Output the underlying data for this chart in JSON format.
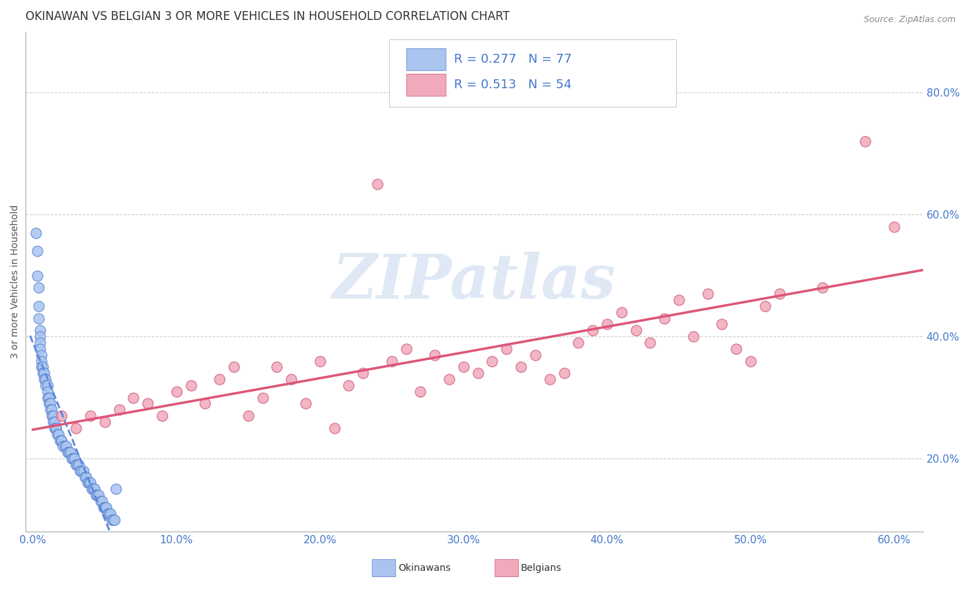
{
  "title": "OKINAWAN VS BELGIAN 3 OR MORE VEHICLES IN HOUSEHOLD CORRELATION CHART",
  "source": "Source: ZipAtlas.com",
  "ylabel_label": "3 or more Vehicles in Household",
  "xlim": [
    -0.005,
    0.62
  ],
  "ylim": [
    0.08,
    0.9
  ],
  "xticks": [
    0.0,
    0.1,
    0.2,
    0.3,
    0.4,
    0.5,
    0.6
  ],
  "yticks": [
    0.2,
    0.4,
    0.6,
    0.8
  ],
  "okinawan_color": "#aac4f0",
  "okinawan_edge_color": "#5580cc",
  "belgian_color": "#f0aabb",
  "belgian_edge_color": "#cc5577",
  "okinawan_line_color": "#5588dd",
  "belgian_line_color": "#dd5577",
  "tick_color": "#4477cc",
  "legend_text_color": "#4477cc",
  "R_okinawan": 0.277,
  "N_okinawan": 77,
  "R_belgian": 0.513,
  "N_belgian": 54,
  "watermark": "ZIPatlas",
  "title_fontsize": 12,
  "axis_label_fontsize": 10,
  "tick_fontsize": 11,
  "legend_fontsize": 13,
  "ok_x": [
    0.002,
    0.003,
    0.003,
    0.004,
    0.004,
    0.004,
    0.005,
    0.005,
    0.005,
    0.005,
    0.006,
    0.006,
    0.006,
    0.007,
    0.007,
    0.008,
    0.008,
    0.009,
    0.009,
    0.01,
    0.01,
    0.01,
    0.011,
    0.011,
    0.012,
    0.012,
    0.013,
    0.013,
    0.014,
    0.014,
    0.015,
    0.015,
    0.016,
    0.016,
    0.017,
    0.018,
    0.019,
    0.02,
    0.02,
    0.021,
    0.022,
    0.023,
    0.024,
    0.025,
    0.026,
    0.027,
    0.028,
    0.029,
    0.03,
    0.031,
    0.032,
    0.033,
    0.034,
    0.035,
    0.036,
    0.037,
    0.038,
    0.039,
    0.04,
    0.041,
    0.042,
    0.043,
    0.044,
    0.045,
    0.046,
    0.047,
    0.048,
    0.049,
    0.05,
    0.051,
    0.052,
    0.053,
    0.054,
    0.055,
    0.056,
    0.057,
    0.058
  ],
  "ok_y": [
    0.57,
    0.54,
    0.5,
    0.48,
    0.45,
    0.43,
    0.41,
    0.4,
    0.39,
    0.38,
    0.37,
    0.36,
    0.35,
    0.35,
    0.34,
    0.34,
    0.33,
    0.33,
    0.32,
    0.32,
    0.31,
    0.3,
    0.3,
    0.29,
    0.29,
    0.28,
    0.28,
    0.27,
    0.27,
    0.26,
    0.26,
    0.25,
    0.25,
    0.25,
    0.24,
    0.24,
    0.23,
    0.23,
    0.23,
    0.22,
    0.22,
    0.22,
    0.21,
    0.21,
    0.21,
    0.2,
    0.2,
    0.2,
    0.19,
    0.19,
    0.19,
    0.18,
    0.18,
    0.18,
    0.17,
    0.17,
    0.16,
    0.16,
    0.16,
    0.15,
    0.15,
    0.15,
    0.14,
    0.14,
    0.14,
    0.13,
    0.13,
    0.12,
    0.12,
    0.12,
    0.11,
    0.11,
    0.11,
    0.1,
    0.1,
    0.1,
    0.15
  ],
  "be_x": [
    0.02,
    0.03,
    0.04,
    0.05,
    0.06,
    0.07,
    0.08,
    0.09,
    0.1,
    0.11,
    0.12,
    0.13,
    0.14,
    0.15,
    0.16,
    0.17,
    0.18,
    0.19,
    0.2,
    0.21,
    0.22,
    0.23,
    0.24,
    0.25,
    0.26,
    0.27,
    0.28,
    0.29,
    0.3,
    0.31,
    0.32,
    0.33,
    0.34,
    0.35,
    0.36,
    0.37,
    0.38,
    0.39,
    0.4,
    0.41,
    0.42,
    0.43,
    0.44,
    0.45,
    0.46,
    0.47,
    0.48,
    0.49,
    0.5,
    0.51,
    0.52,
    0.55,
    0.58,
    0.6
  ],
  "be_y": [
    0.27,
    0.25,
    0.27,
    0.26,
    0.28,
    0.3,
    0.29,
    0.27,
    0.31,
    0.32,
    0.29,
    0.33,
    0.35,
    0.27,
    0.3,
    0.35,
    0.33,
    0.29,
    0.36,
    0.25,
    0.32,
    0.34,
    0.65,
    0.36,
    0.38,
    0.31,
    0.37,
    0.33,
    0.35,
    0.34,
    0.36,
    0.38,
    0.35,
    0.37,
    0.33,
    0.34,
    0.39,
    0.41,
    0.42,
    0.44,
    0.41,
    0.39,
    0.43,
    0.46,
    0.4,
    0.47,
    0.42,
    0.38,
    0.36,
    0.45,
    0.47,
    0.48,
    0.72,
    0.58
  ]
}
